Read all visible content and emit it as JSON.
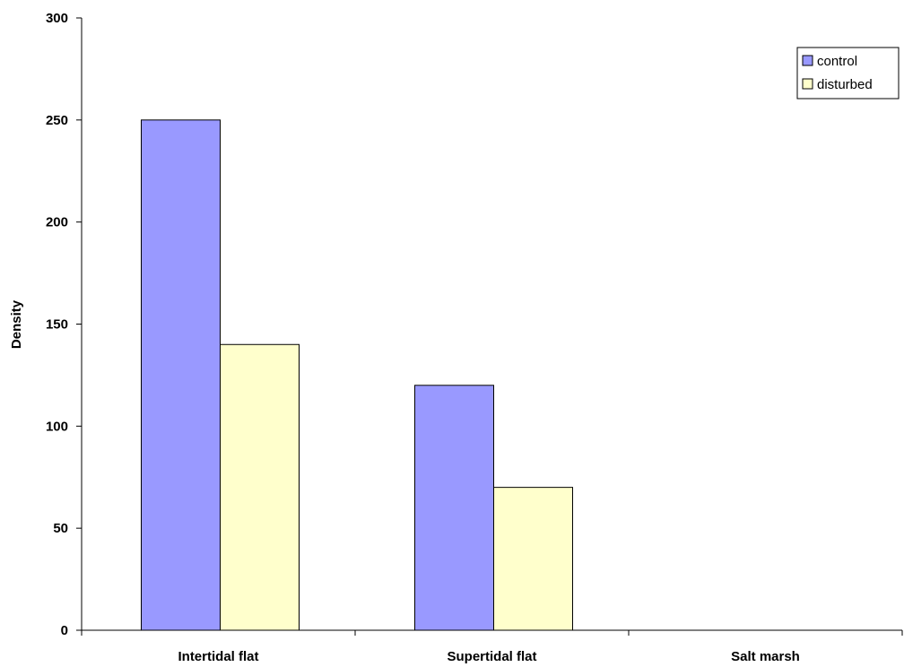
{
  "chart_data": {
    "type": "bar",
    "title": "",
    "xlabel": "",
    "ylabel": "Density",
    "ylim": [
      0,
      300
    ],
    "yticks": [
      0,
      50,
      100,
      150,
      200,
      250,
      300
    ],
    "categories": [
      "Intertidal flat",
      "Supertidal flat",
      "Salt marsh"
    ],
    "series": [
      {
        "name": "control",
        "values": [
          250,
          120,
          0
        ],
        "color": "#9999ff"
      },
      {
        "name": "disturbed",
        "values": [
          140,
          70,
          0
        ],
        "color": "#ffffcc"
      }
    ],
    "legend": {
      "position": "top-right"
    },
    "grid": false
  }
}
